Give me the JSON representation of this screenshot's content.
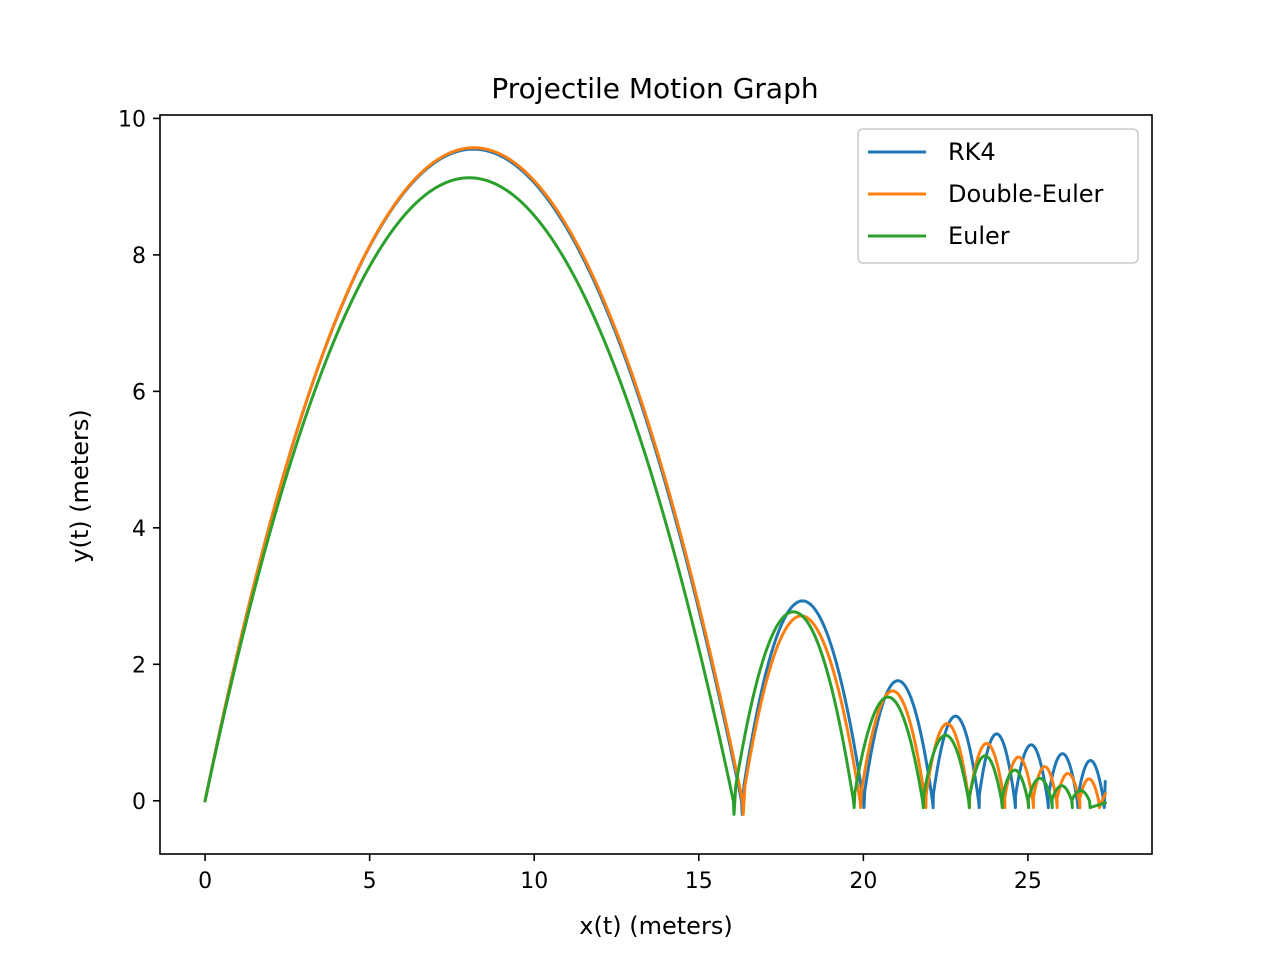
{
  "chart_data": {
    "type": "line",
    "title": "Projectile Motion Graph",
    "xlabel": "x(t) (meters)",
    "ylabel": "y(t) (meters)",
    "xlim": [
      -1.37,
      28.77
    ],
    "ylim": [
      -0.78,
      10.05
    ],
    "xticks": [
      0,
      5,
      10,
      15,
      20,
      25
    ],
    "yticks": [
      0,
      2,
      4,
      6,
      8,
      10
    ],
    "grid": false,
    "legend_position": "top-right",
    "series": [
      {
        "name": "RK4",
        "color": "#1f77b4",
        "bounces": [
          {
            "x0": 0.0,
            "x1": 16.3,
            "h": 9.55
          },
          {
            "x0": 16.3,
            "x1": 20.0,
            "h": 2.93
          },
          {
            "x0": 20.0,
            "x1": 22.1,
            "h": 1.76
          },
          {
            "x0": 22.1,
            "x1": 23.5,
            "h": 1.24
          },
          {
            "x0": 23.5,
            "x1": 24.6,
            "h": 0.98
          },
          {
            "x0": 24.6,
            "x1": 25.6,
            "h": 0.82
          },
          {
            "x0": 25.6,
            "x1": 26.5,
            "h": 0.69
          },
          {
            "x0": 26.5,
            "x1": 27.3,
            "h": 0.59
          }
        ],
        "end": {
          "x": 27.35,
          "y": 0.28
        }
      },
      {
        "name": "Double-Euler",
        "color": "#ff7f0e",
        "bounces": [
          {
            "x0": 0.0,
            "x1": 16.33,
            "h": 9.57
          },
          {
            "x0": 16.33,
            "x1": 19.9,
            "h": 2.71
          },
          {
            "x0": 19.9,
            "x1": 21.88,
            "h": 1.61
          },
          {
            "x0": 21.88,
            "x1": 23.21,
            "h": 1.13
          },
          {
            "x0": 23.21,
            "x1": 24.28,
            "h": 0.84
          },
          {
            "x0": 24.28,
            "x1": 25.15,
            "h": 0.64
          },
          {
            "x0": 25.15,
            "x1": 25.87,
            "h": 0.5
          },
          {
            "x0": 25.87,
            "x1": 26.56,
            "h": 0.4
          },
          {
            "x0": 26.56,
            "x1": 27.15,
            "h": 0.32
          }
        ],
        "end": {
          "x": 27.35,
          "y": 0.1
        }
      },
      {
        "name": "Euler",
        "color": "#2ca02c",
        "bounces": [
          {
            "x0": 0.0,
            "x1": 16.05,
            "h": 9.13
          },
          {
            "x0": 16.05,
            "x1": 19.7,
            "h": 2.77
          },
          {
            "x0": 19.7,
            "x1": 21.8,
            "h": 1.52
          },
          {
            "x0": 21.8,
            "x1": 23.2,
            "h": 0.96
          },
          {
            "x0": 23.2,
            "x1": 24.2,
            "h": 0.66
          },
          {
            "x0": 24.2,
            "x1": 25.0,
            "h": 0.45
          },
          {
            "x0": 25.0,
            "x1": 25.72,
            "h": 0.33
          },
          {
            "x0": 25.72,
            "x1": 26.33,
            "h": 0.22
          },
          {
            "x0": 26.33,
            "x1": 26.87,
            "h": 0.15
          }
        ],
        "end": {
          "x": 27.35,
          "y": -0.03
        }
      }
    ]
  }
}
